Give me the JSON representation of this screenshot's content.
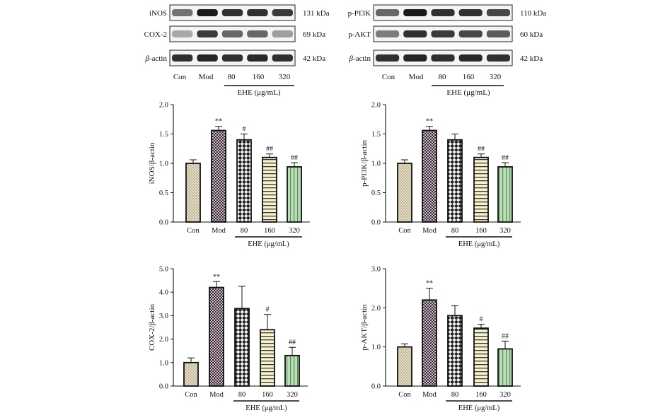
{
  "blots": [
    {
      "rows": [
        {
          "name": "iNOS",
          "kda": "131 kDa",
          "italic_prefix": ""
        },
        {
          "name": "COX-2",
          "kda": "69 kDa",
          "italic_prefix": ""
        },
        {
          "name": "-actin",
          "kda": "42 kDa",
          "italic_prefix": "β"
        }
      ],
      "lanes": [
        "Con",
        "Mod",
        "80",
        "160",
        "320"
      ],
      "group_label": "EHE (μg/mL)",
      "intensities": [
        [
          0.55,
          0.95,
          0.85,
          0.85,
          0.8
        ],
        [
          0.3,
          0.8,
          0.6,
          0.6,
          0.35
        ],
        [
          0.85,
          0.9,
          0.85,
          0.88,
          0.85
        ]
      ]
    },
    {
      "rows": [
        {
          "name": "p-PI3K",
          "kda": "110 kDa",
          "italic_prefix": ""
        },
        {
          "name": "p-AKT",
          "kda": "60 kDa",
          "italic_prefix": ""
        },
        {
          "name": "-actin",
          "kda": "42 kDa",
          "italic_prefix": "β"
        }
      ],
      "lanes": [
        "Con",
        "Mod",
        "80",
        "160",
        "320"
      ],
      "group_label": "EHE (μg/mL)",
      "intensities": [
        [
          0.6,
          0.95,
          0.85,
          0.85,
          0.75
        ],
        [
          0.5,
          0.85,
          0.8,
          0.75,
          0.65
        ],
        [
          0.85,
          0.9,
          0.85,
          0.88,
          0.85
        ]
      ]
    }
  ],
  "chart_data": [
    {
      "type": "bar",
      "categories": [
        "Con",
        "Mod",
        "80",
        "160",
        "320"
      ],
      "values": [
        1.0,
        1.56,
        1.4,
        1.1,
        0.94
      ],
      "errors": [
        0.06,
        0.07,
        0.1,
        0.06,
        0.07
      ],
      "significance": [
        "",
        "**",
        "#",
        "##",
        "##"
      ],
      "ylabel": "iNOS/β-actin",
      "ylim": [
        0,
        2.0
      ],
      "yticks": [
        "0.0",
        "0.5",
        "1.0",
        "1.5",
        "2.0"
      ],
      "group_label": "EHE (μg/mL)",
      "patterns": [
        "dots",
        "checker-fine",
        "checker",
        "hstripes",
        "vstripes"
      ],
      "fills": [
        "#e6dcc4",
        "#4a3a44",
        "#2a2a2a",
        "#f3efc8",
        "#b6dcb4"
      ]
    },
    {
      "type": "bar",
      "categories": [
        "Con",
        "Mod",
        "80",
        "160",
        "320"
      ],
      "values": [
        1.0,
        1.56,
        1.4,
        1.1,
        0.94
      ],
      "errors": [
        0.06,
        0.07,
        0.1,
        0.06,
        0.07
      ],
      "significance": [
        "",
        "**",
        "",
        "##",
        "##"
      ],
      "ylabel": "p-PI3K/β-actin",
      "ylim": [
        0,
        2.0
      ],
      "yticks": [
        "0.0",
        "0.5",
        "1.0",
        "1.5",
        "2.0"
      ],
      "group_label": "EHE (μg/mL)",
      "patterns": [
        "dots",
        "checker-fine",
        "checker",
        "hstripes",
        "vstripes"
      ],
      "fills": [
        "#e6dcc4",
        "#4a3a44",
        "#2a2a2a",
        "#f3efc8",
        "#b6dcb4"
      ]
    },
    {
      "type": "bar",
      "categories": [
        "Con",
        "Mod",
        "80",
        "160",
        "320"
      ],
      "values": [
        1.0,
        4.2,
        3.3,
        2.4,
        1.3
      ],
      "errors": [
        0.2,
        0.25,
        0.95,
        0.65,
        0.35
      ],
      "significance": [
        "",
        "**",
        "",
        "#",
        "##"
      ],
      "ylabel": "COX-2/β-actin",
      "ylim": [
        0,
        5.0
      ],
      "yticks": [
        "0.0",
        "1.0",
        "2.0",
        "3.0",
        "4.0",
        "5.0"
      ],
      "group_label": "EHE (μg/mL)",
      "patterns": [
        "dots",
        "checker-fine",
        "checker",
        "hstripes",
        "vstripes"
      ],
      "fills": [
        "#e6dcc4",
        "#4a3a44",
        "#2a2a2a",
        "#f3efc8",
        "#b6dcb4"
      ]
    },
    {
      "type": "bar",
      "categories": [
        "Con",
        "Mod",
        "80",
        "160",
        "320"
      ],
      "values": [
        1.0,
        2.2,
        1.8,
        1.48,
        0.95
      ],
      "errors": [
        0.08,
        0.3,
        0.25,
        0.1,
        0.2
      ],
      "significance": [
        "",
        "**",
        "",
        "#",
        "##"
      ],
      "ylabel": "p-AKT/β-actin",
      "ylim": [
        0,
        3.0
      ],
      "yticks": [
        "0.0",
        "1.0",
        "2.0",
        "3.0"
      ],
      "group_label": "EHE (μg/mL)",
      "patterns": [
        "dots",
        "checker-fine",
        "checker",
        "hstripes",
        "vstripes"
      ],
      "fills": [
        "#e6dcc4",
        "#4a3a44",
        "#2a2a2a",
        "#f3efc8",
        "#b6dcb4"
      ]
    }
  ]
}
